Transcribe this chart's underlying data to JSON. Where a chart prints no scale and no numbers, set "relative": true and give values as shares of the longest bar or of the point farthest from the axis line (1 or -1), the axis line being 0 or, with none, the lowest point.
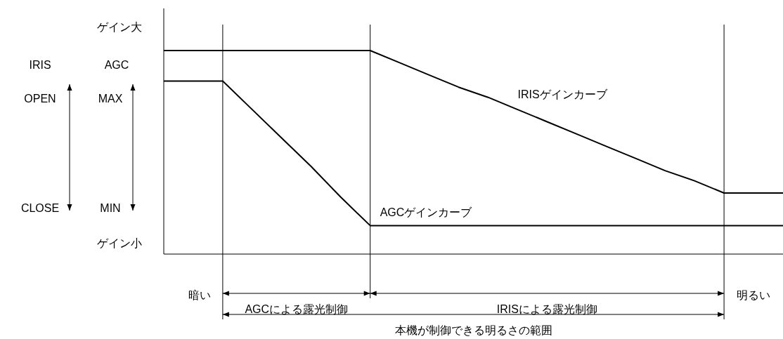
{
  "chart_data": {
    "type": "line",
    "relative": true,
    "categories": [
      null,
      null,
      null,
      null,
      null,
      null,
      null,
      null,
      null,
      null,
      null,
      null,
      null,
      null,
      null,
      null,
      null,
      null,
      null,
      null,
      null,
      null
    ],
    "series": [
      {
        "name": "IRISゲインカーブ",
        "color": "#000000",
        "values": [
          1,
          1,
          1,
          1,
          1,
          1,
          1,
          1,
          0.94,
          0.88,
          0.82,
          0.77,
          0.71,
          0.65,
          0.59,
          0.53,
          0.47,
          0.41,
          0.36,
          0.3,
          0.3,
          0.3
        ]
      },
      {
        "name": "AGCゲインカーブ",
        "color": "#000000",
        "values": [
          0.85,
          0.85,
          0.85,
          0.71,
          0.57,
          0.43,
          0.28,
          0.14,
          0.14,
          0.14,
          0.14,
          0.14,
          0.14,
          0.14,
          0.14,
          0.14,
          0.14,
          0.14,
          0.14,
          0.14,
          0.14,
          0.14
        ]
      }
    ],
    "annotations": [
      "ゲイン大",
      "ゲイン小",
      "IRIS",
      "AGC",
      "OPEN",
      "MAX",
      "CLOSE",
      "MIN",
      "暗い",
      "明るい",
      "AGCによる露光制御",
      "IRISによる露光制御",
      "本機が制御できる明るさの範囲"
    ],
    "legend": false,
    "grid": "x"
  }
}
